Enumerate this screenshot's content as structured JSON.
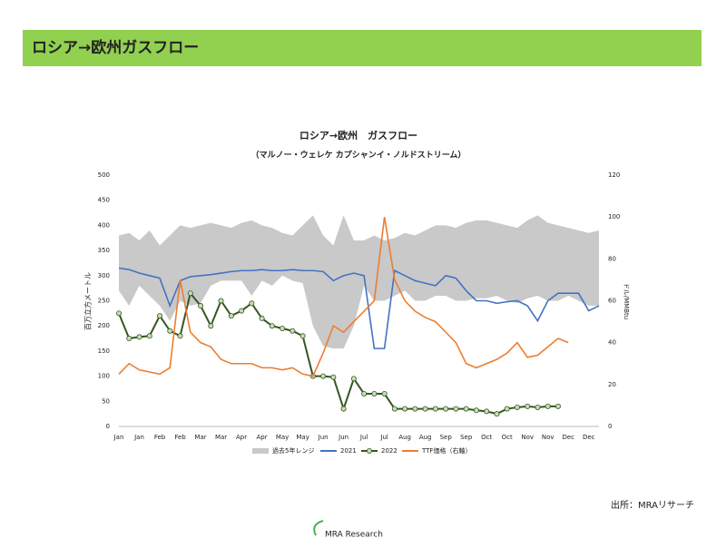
{
  "header": {
    "title": "ロシア→欧州ガスフロー"
  },
  "chart_data": {
    "type": "line",
    "title": "ロシア→欧州　ガスフロー",
    "subtitle": "（マルノー・ウェレケ カプシャンイ・ノルドストリーム）",
    "ylabel": "百万立方メートル",
    "y2label": "ドル/MMBtu",
    "categories": [
      "Jan",
      null,
      "Jan",
      null,
      "Feb",
      null,
      "Feb",
      null,
      "Mar",
      null,
      "Mar",
      null,
      "Apr",
      null,
      "Apr",
      null,
      "May",
      null,
      "May",
      null,
      "Jun",
      null,
      "Jun",
      null,
      "Jul",
      null,
      "Jul",
      null,
      "Aug",
      null,
      "Aug",
      null,
      "Sep",
      null,
      "Sep",
      null,
      "Oct",
      null,
      "Oct",
      null,
      "Nov",
      null,
      "Nov",
      null,
      "Dec",
      null,
      "Dec",
      null
    ],
    "ylim": [
      0,
      500
    ],
    "yticks": [
      0,
      50,
      100,
      150,
      200,
      250,
      300,
      350,
      400,
      450,
      500
    ],
    "y2lim": [
      0,
      120
    ],
    "y2ticks": [
      0,
      20,
      40,
      60,
      80,
      100,
      120
    ],
    "series": [
      {
        "name": "過去5年レンジ",
        "type": "range",
        "color": "#c9c9c9",
        "low": [
          270,
          240,
          280,
          260,
          240,
          210,
          250,
          240,
          245,
          280,
          290,
          290,
          290,
          260,
          290,
          280,
          300,
          290,
          285,
          200,
          160,
          155,
          155,
          200,
          280,
          250,
          250,
          260,
          270,
          250,
          250,
          260,
          260,
          250,
          250,
          255,
          255,
          260,
          250,
          245,
          255,
          260,
          250,
          250,
          260,
          250,
          240,
          240
        ],
        "high": [
          380,
          385,
          370,
          390,
          360,
          380,
          400,
          395,
          400,
          405,
          400,
          395,
          405,
          410,
          400,
          395,
          385,
          380,
          400,
          420,
          380,
          360,
          420,
          370,
          370,
          380,
          370,
          375,
          385,
          380,
          390,
          400,
          400,
          395,
          405,
          410,
          410,
          405,
          400,
          395,
          410,
          420,
          405,
          400,
          395,
          390,
          385,
          390
        ]
      },
      {
        "name": "2021",
        "color": "#4472c4",
        "values": [
          315,
          312,
          305,
          300,
          295,
          240,
          290,
          298,
          300,
          302,
          305,
          308,
          310,
          310,
          312,
          310,
          310,
          312,
          310,
          310,
          308,
          290,
          300,
          305,
          300,
          155,
          155,
          310,
          300,
          290,
          285,
          280,
          300,
          295,
          270,
          250,
          250,
          245,
          248,
          250,
          240,
          210,
          250,
          265,
          265,
          265,
          230,
          240
        ]
      },
      {
        "name": "2022",
        "color": "#375623",
        "marker": true,
        "values": [
          225,
          175,
          178,
          180,
          220,
          190,
          180,
          265,
          240,
          200,
          250,
          220,
          230,
          245,
          215,
          200,
          195,
          190,
          180,
          100,
          100,
          98,
          35,
          95,
          65,
          65,
          65,
          35,
          35,
          35,
          35,
          35,
          35,
          35,
          35,
          32,
          30,
          25,
          35,
          38,
          40,
          38,
          40,
          40,
          null,
          null,
          null,
          null
        ]
      },
      {
        "name": "TTF価格（右軸）",
        "color": "#ed7d31",
        "axis": "y2",
        "values": [
          25,
          30,
          27,
          26,
          25,
          28,
          70,
          45,
          40,
          38,
          32,
          30,
          30,
          30,
          28,
          28,
          27,
          28,
          25,
          24,
          35,
          48,
          45,
          50,
          55,
          60,
          100,
          70,
          60,
          55,
          52,
          50,
          45,
          40,
          30,
          28,
          30,
          32,
          35,
          40,
          33,
          34,
          38,
          42,
          40,
          null,
          null,
          null
        ]
      }
    ]
  },
  "source": "出所：MRAリサーチ",
  "logo": "MRA Research"
}
